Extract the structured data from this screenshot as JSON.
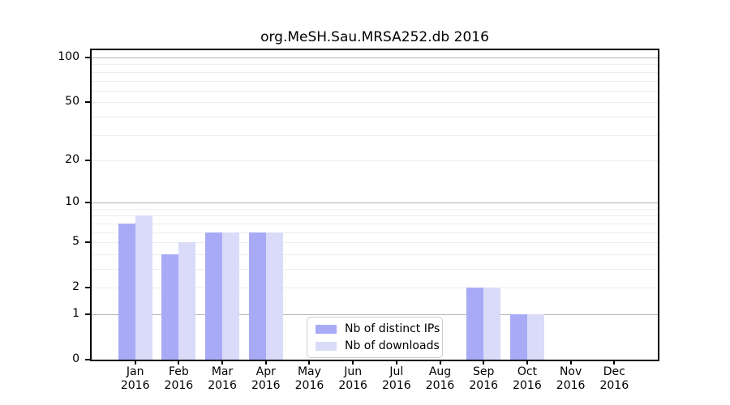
{
  "title": "org.MeSH.Sau.MRSA252.db 2016",
  "colors": {
    "bar_dark": "#a9aaf6",
    "bar_light": "#d9dbf9",
    "grid_minor": "#ededed",
    "grid_major": "#b3b3b3",
    "axis": "#000000",
    "text": "#000000",
    "legend_border": "#cccccc",
    "background": "#ffffff"
  },
  "chart_data": {
    "type": "bar",
    "title": "org.MeSH.Sau.MRSA252.db 2016",
    "categories": [
      "Jan",
      "Feb",
      "Mar",
      "Apr",
      "May",
      "Jun",
      "Jul",
      "Aug",
      "Sep",
      "Oct",
      "Nov",
      "Dec"
    ],
    "category_year": "2016",
    "series": [
      {
        "name": "Nb of distinct IPs",
        "color": "#a9aaf6",
        "values": [
          7,
          4,
          6,
          6,
          0,
          0,
          0,
          0,
          2,
          1,
          0,
          0
        ]
      },
      {
        "name": "Nb of downloads",
        "color": "#d9dbf9",
        "values": [
          8,
          5,
          6,
          6,
          0,
          0,
          0,
          0,
          2,
          1,
          0,
          0
        ]
      }
    ],
    "y_scale": "log1p",
    "ylim": [
      0,
      112
    ],
    "y_ticks": [
      0,
      1,
      2,
      5,
      10,
      20,
      50,
      100
    ],
    "y_minor_gridlines": [
      2,
      3,
      4,
      5,
      6,
      7,
      8,
      9,
      20,
      30,
      40,
      50,
      60,
      70,
      80,
      90
    ],
    "y_major_gridlines": [
      1,
      10,
      100
    ],
    "grid": true,
    "legend_position": "lower center",
    "xlabel": "",
    "ylabel": ""
  },
  "legend": {
    "items": [
      {
        "label": "Nb of distinct IPs"
      },
      {
        "label": "Nb of downloads"
      }
    ]
  }
}
